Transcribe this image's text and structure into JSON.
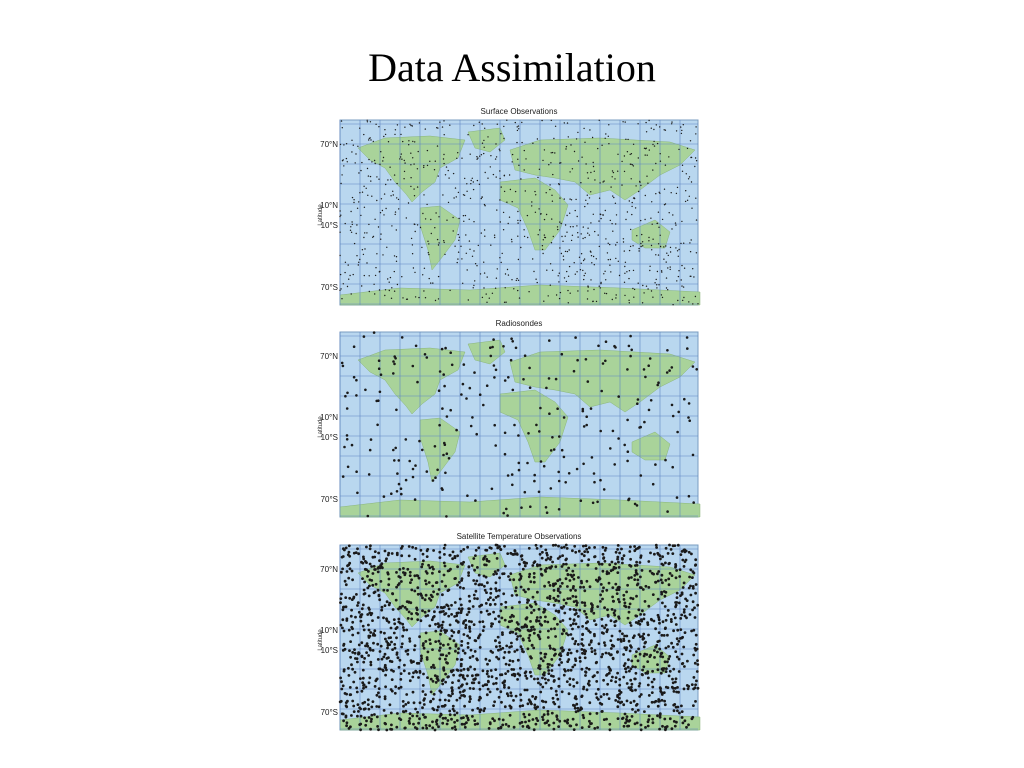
{
  "title": "Data Assimilation",
  "panels": [
    {
      "title": "Surface Observations",
      "axis_label": "Latitude",
      "lat_labels": [
        "70°N",
        "10°N",
        "10°S",
        "70°S"
      ]
    },
    {
      "title": "Radiosondes",
      "axis_label": "Latitude",
      "lat_labels": [
        "70°N",
        "10°N",
        "10°S",
        "70°S"
      ]
    },
    {
      "title": "Satellite Temperature Observations",
      "axis_label": "Latitude",
      "lat_labels": [
        "70°N",
        "10°N",
        "10°S",
        "70°S"
      ]
    }
  ]
}
